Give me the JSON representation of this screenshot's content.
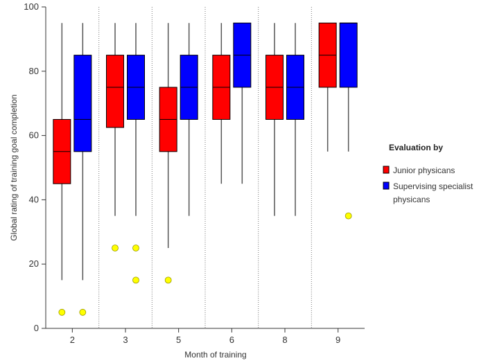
{
  "chart_data": {
    "type": "box",
    "xlabel": "Month of training",
    "ylabel": "Global rating of training goal completion",
    "ylim": [
      0,
      100
    ],
    "yticks": [
      0,
      20,
      40,
      60,
      80,
      100
    ],
    "categories": [
      "2",
      "3",
      "5",
      "6",
      "8",
      "9"
    ],
    "grid": "vertical dotted separators between month groups",
    "legend": {
      "title": "Evaluation by",
      "position": "right",
      "entries": [
        {
          "name": "Junior physicans",
          "color": "#ff0000"
        },
        {
          "name": "Supervising specialist physicans",
          "color": "#0000ff",
          "lines": [
            "Supervising specialist",
            "physicans"
          ]
        }
      ]
    },
    "series": [
      {
        "name": "Junior physicans",
        "color": "#ff0000",
        "boxes": [
          {
            "min": 15,
            "q1": 45,
            "median": 55,
            "q3": 65,
            "max": 95,
            "outliers": [
              5
            ]
          },
          {
            "min": 35,
            "q1": 62.5,
            "median": 75,
            "q3": 85,
            "max": 95,
            "outliers": [
              25
            ]
          },
          {
            "min": 25,
            "q1": 55,
            "median": 65,
            "q3": 75,
            "max": 95,
            "outliers": [
              15
            ]
          },
          {
            "min": 45,
            "q1": 65,
            "median": 75,
            "q3": 85,
            "max": 95,
            "outliers": []
          },
          {
            "min": 35,
            "q1": 65,
            "median": 75,
            "q3": 85,
            "max": 95,
            "outliers": []
          },
          {
            "min": 55,
            "q1": 75,
            "median": 85,
            "q3": 95,
            "max": 95,
            "outliers": []
          }
        ]
      },
      {
        "name": "Supervising specialist physicans",
        "color": "#0000ff",
        "boxes": [
          {
            "min": 15,
            "q1": 55,
            "median": 65,
            "q3": 85,
            "max": 95,
            "outliers": [
              5
            ]
          },
          {
            "min": 35,
            "q1": 65,
            "median": 75,
            "q3": 85,
            "max": 95,
            "outliers": [
              25,
              15
            ]
          },
          {
            "min": 35,
            "q1": 65,
            "median": 75,
            "q3": 85,
            "max": 95,
            "outliers": []
          },
          {
            "min": 45,
            "q1": 75,
            "median": 85,
            "q3": 95,
            "max": 95,
            "outliers": []
          },
          {
            "min": 35,
            "q1": 65,
            "median": 75,
            "q3": 85,
            "max": 95,
            "outliers": []
          },
          {
            "min": 55,
            "q1": 75,
            "median": 95,
            "q3": 95,
            "max": 95,
            "outliers": [
              35
            ]
          }
        ]
      }
    ],
    "outlier_color": "#ffff00"
  }
}
